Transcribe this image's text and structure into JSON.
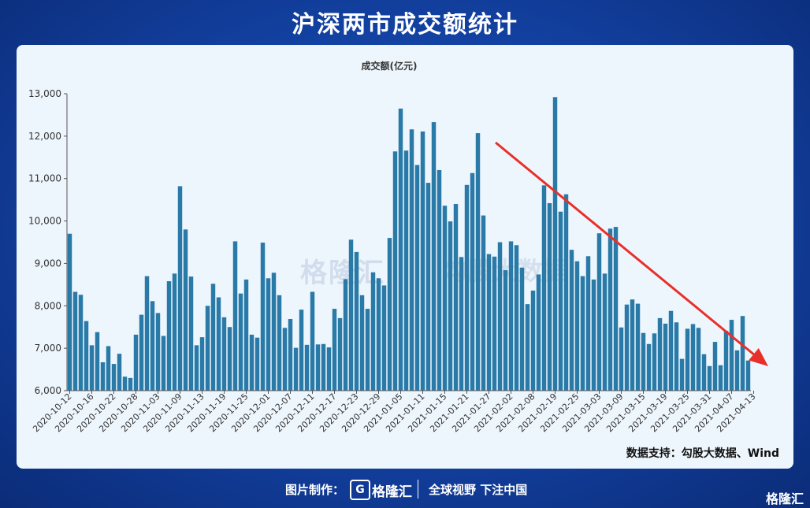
{
  "header": {
    "title": "沪深两市成交额统计"
  },
  "footer": {
    "credit_label": "图片制作：",
    "logo_text": "格隆汇",
    "logo_mark": "G",
    "slogan": "全球视野 下注中国",
    "corner_logo": "格隆汇"
  },
  "watermark": {
    "text": "格隆汇",
    "text2": "勾股大数据"
  },
  "source": "数据支持：勾股大数据、Wind",
  "colors": {
    "bar": "#2a7aa8",
    "arrow": "#e8302a",
    "axis": "#333333"
  },
  "chart_data": {
    "type": "bar",
    "title": "成交额(亿元)",
    "ylim": [
      6000,
      13000
    ],
    "yticks": [
      6000,
      7000,
      8000,
      9000,
      10000,
      11000,
      12000,
      13000
    ],
    "ytick_labels": [
      "6,000",
      "7,000",
      "8,000",
      "9,000",
      "10,000",
      "11,000",
      "12,000",
      "13,000"
    ],
    "xtick_labels": [
      "2020-10-12",
      "2020-10-16",
      "2020-10-22",
      "2020-10-28",
      "2020-11-03",
      "2020-11-09",
      "2020-11-13",
      "2020-11-19",
      "2020-11-25",
      "2020-12-01",
      "2020-12-07",
      "2020-12-11",
      "2020-12-17",
      "2020-12-23",
      "2020-12-29",
      "2021-01-05",
      "2021-01-11",
      "2021-01-15",
      "2021-01-21",
      "2021-01-27",
      "2021-02-02",
      "2021-02-08",
      "2021-02-19",
      "2021-02-25",
      "2021-03-03",
      "2021-03-09",
      "2021-03-15",
      "2021-03-19",
      "2021-03-25",
      "2021-03-31",
      "2021-04-07",
      "2021-04-13"
    ],
    "values": [
      9700,
      8330,
      8260,
      7640,
      7070,
      7380,
      6670,
      7050,
      6630,
      6870,
      6330,
      6300,
      7320,
      7790,
      8700,
      8110,
      7830,
      7290,
      8580,
      8760,
      10820,
      9800,
      8690,
      7070,
      7260,
      8000,
      8520,
      8200,
      7730,
      7500,
      9520,
      8290,
      8620,
      7320,
      7250,
      9490,
      8650,
      8780,
      8250,
      7480,
      7690,
      7010,
      7910,
      7080,
      8330,
      7090,
      7100,
      7020,
      7930,
      7710,
      8630,
      9560,
      9270,
      8250,
      7930,
      8790,
      8650,
      8480,
      9600,
      11640,
      12650,
      11660,
      12160,
      11320,
      12110,
      10900,
      12330,
      11200,
      10360,
      9990,
      10400,
      9150,
      10850,
      11130,
      12070,
      10130,
      9220,
      9160,
      9500,
      8840,
      9520,
      9430,
      8900,
      8040,
      8360,
      8740,
      10840,
      10420,
      12920,
      10220,
      10630,
      9320,
      9050,
      8700,
      9170,
      8620,
      9710,
      8760,
      9820,
      9860,
      7490,
      8030,
      8150,
      8050,
      7360,
      7100,
      7350,
      7710,
      7580,
      7880,
      7610,
      6750,
      7460,
      7570,
      7480,
      6860,
      6580,
      7150,
      6600,
      7410,
      7670,
      6950,
      7760,
      6710
    ]
  }
}
